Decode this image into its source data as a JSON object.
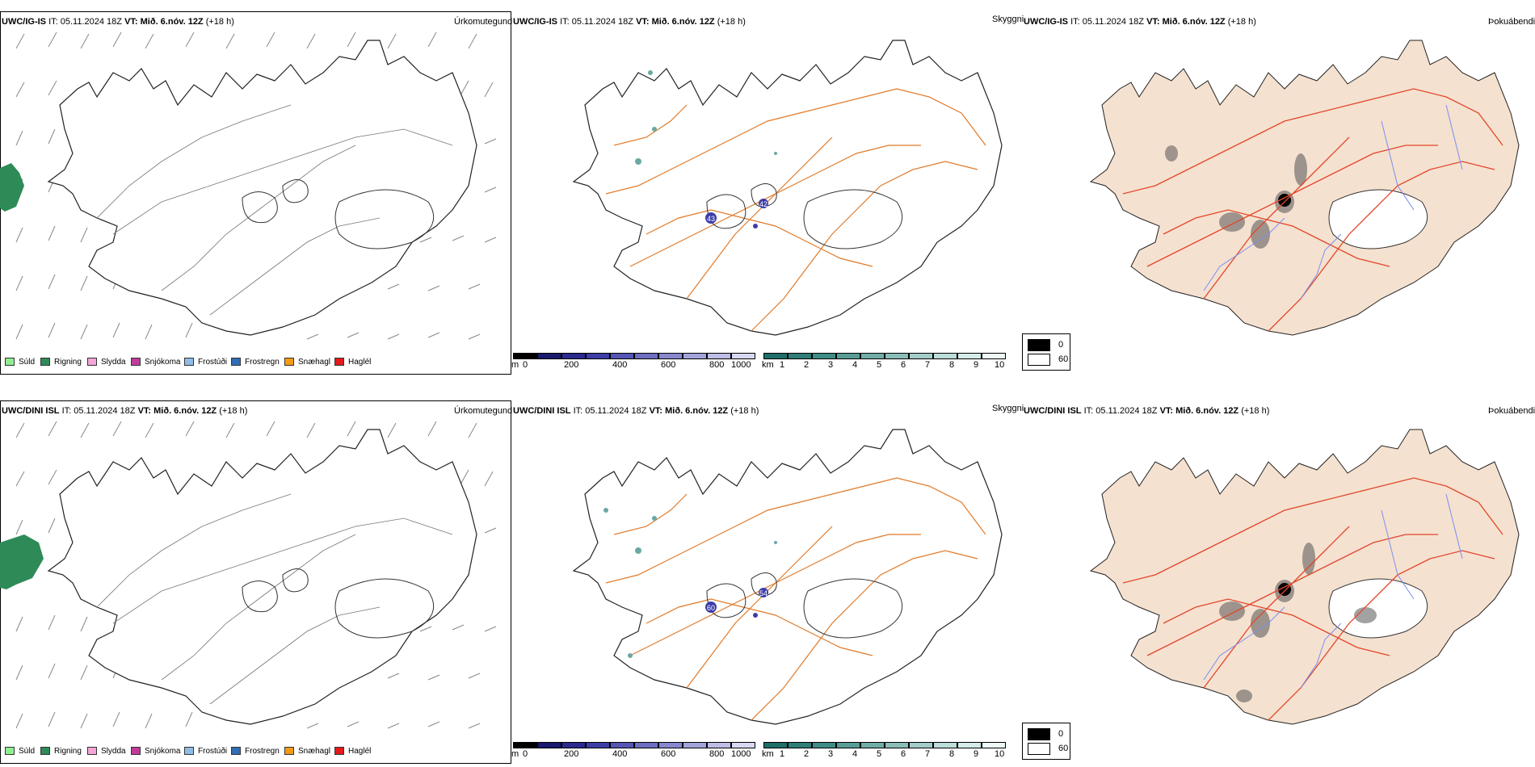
{
  "rows": [
    {
      "model": "UWC/IG-IS",
      "it_label": "IT:",
      "it_value": "05.11.2024 18Z",
      "vt_label": "VT:",
      "vt_value": "Mið. 6.nóv. 12Z",
      "lead": "(+18 h)"
    },
    {
      "model": "UWC/DINI ISL",
      "it_label": "IT:",
      "it_value": "05.11.2024 18Z",
      "vt_label": "VT:",
      "vt_value": "Mið. 6.nóv. 12Z",
      "lead": "(+18 h)"
    }
  ],
  "panel_titles": {
    "precip_type": "Úrkomutegund",
    "visibility": "Skyggni",
    "dewpoint": "Þokuábendi"
  },
  "precip_legend": [
    {
      "label": "Súld",
      "color": "#90ee90"
    },
    {
      "label": "Rigning",
      "color": "#2e8b57"
    },
    {
      "label": "Slydda",
      "color": "#f4a6d7"
    },
    {
      "label": "Snjókoma",
      "color": "#c23b9a"
    },
    {
      "label": "Frostúði",
      "color": "#8fbce6"
    },
    {
      "label": "Frostregn",
      "color": "#2f6db5"
    },
    {
      "label": "Snæhagl",
      "color": "#f39c12"
    },
    {
      "label": "Haglél",
      "color": "#e31a1c"
    }
  ],
  "ceiling_bar": {
    "unit": "m",
    "ticks": [
      "0",
      "200",
      "400",
      "600",
      "800",
      "1000"
    ],
    "colors": [
      "#000000",
      "#1a1a6e",
      "#2b2b8f",
      "#3d3da8",
      "#5555b5",
      "#6e6ec2",
      "#8888cf",
      "#a3a3db",
      "#bdbde6",
      "#d8d8f1"
    ]
  },
  "visibility_bar": {
    "unit": "km",
    "ticks": [
      "1",
      "2",
      "3",
      "4",
      "5",
      "6",
      "7",
      "8",
      "9",
      "10"
    ],
    "colors": [
      "#1f6f6a",
      "#2f7e78",
      "#3f8d87",
      "#589d97",
      "#71ada7",
      "#8abdb8",
      "#a3cdc9",
      "#bcddda",
      "#d5ece9",
      "#eef8f7"
    ]
  },
  "fog_legend": {
    "items": [
      {
        "label": "0",
        "color": "#000000"
      },
      {
        "label": "60",
        "color": "#ffffff"
      }
    ]
  },
  "map_labels": {
    "row1_a": "43",
    "row1_b": "42",
    "row2_a": "60",
    "row2_b": "54"
  },
  "colors": {
    "land_fill": "#f5e1d0",
    "road": "#e07a2a",
    "road_red": "#e2462a",
    "river": "#7b8ff0",
    "rain_green": "#2e8b57"
  }
}
